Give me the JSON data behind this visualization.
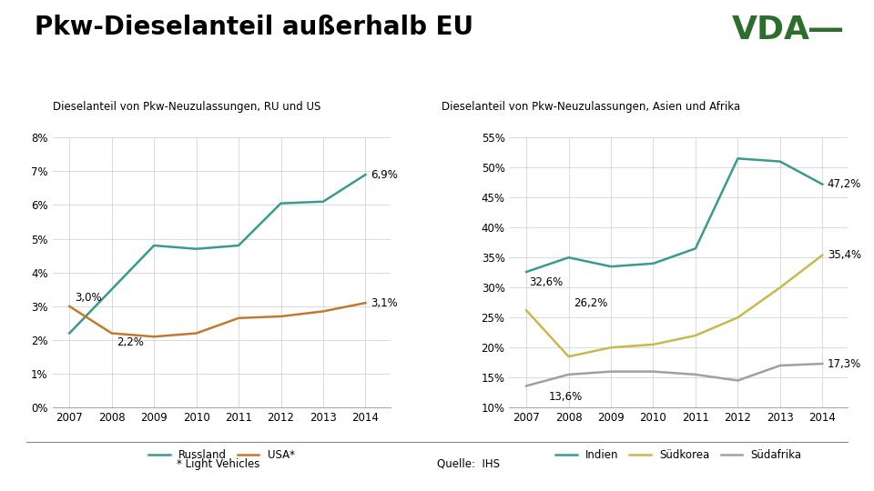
{
  "title": "Pkw-Dieselanteil außerhalb EU",
  "subtitle_left": "Dieselanteil von Pkw-Neuzulassungen, RU und US",
  "subtitle_right": "Dieselanteil von Pkw-Neuzulassungen, Asien und Afrika",
  "years": [
    2007,
    2008,
    2009,
    2010,
    2011,
    2012,
    2013,
    2014
  ],
  "russland": [
    2.2,
    3.5,
    4.8,
    4.7,
    4.8,
    6.05,
    6.1,
    6.9
  ],
  "usa": [
    3.0,
    2.2,
    2.1,
    2.2,
    2.65,
    2.7,
    2.85,
    3.1
  ],
  "indien": [
    32.6,
    35.0,
    33.5,
    34.0,
    36.5,
    51.5,
    51.0,
    47.2
  ],
  "suedkorea": [
    26.2,
    18.5,
    20.0,
    20.5,
    22.0,
    25.0,
    30.0,
    35.4
  ],
  "suedafrika": [
    13.6,
    15.5,
    16.0,
    16.0,
    15.5,
    14.5,
    17.0,
    17.3
  ],
  "color_russland": "#3a9a8c",
  "color_usa": "#c07a30",
  "color_indien": "#3a9a8c",
  "color_suedkorea": "#c9b84c",
  "color_suedafrika": "#a0a0a0",
  "color_vda_green": "#2d6e2d",
  "background_color": "#ffffff",
  "grid_color": "#cccccc",
  "footnote_left": "* Light Vehicles",
  "footnote_right": "Quelle:  IHS",
  "label_russland": "Russland",
  "label_usa": "USA*",
  "label_indien": "Indien",
  "label_suedkorea": "Südkorea",
  "label_suedafrika": "Südafrika",
  "ylim_left": [
    0,
    8
  ],
  "yticks_left": [
    0,
    1,
    2,
    3,
    4,
    5,
    6,
    7,
    8
  ],
  "ylim_right": [
    10,
    55
  ],
  "yticks_right": [
    10,
    15,
    20,
    25,
    30,
    35,
    40,
    45,
    50,
    55
  ],
  "linewidth": 1.8
}
